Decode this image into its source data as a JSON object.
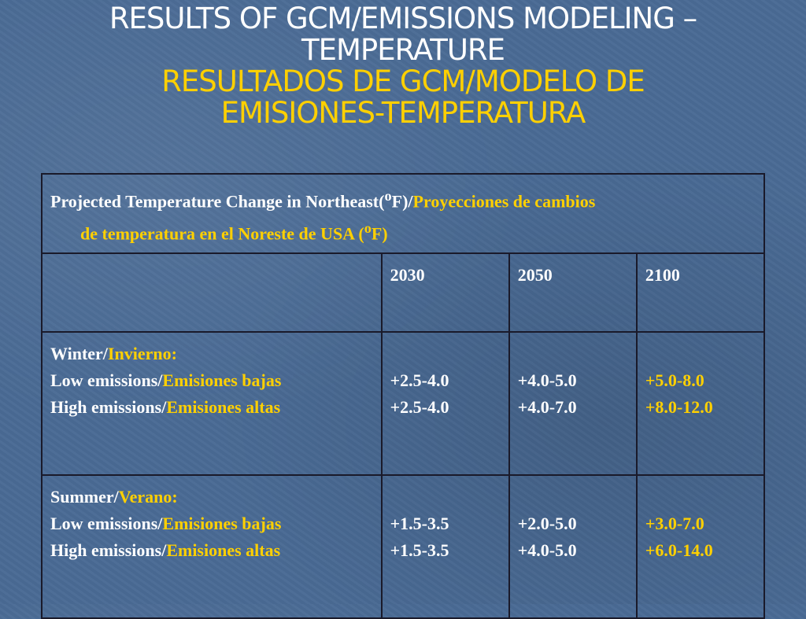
{
  "title": {
    "en_line1": "RESULTS OF GCM/EMISSIONS MODELING –",
    "en_line2": "TEMPERATURE",
    "es_line1": "RESULTADOS DE GCM/MODELO DE",
    "es_line2": "EMISIONES-TEMPERATURA"
  },
  "table": {
    "header": {
      "en": "Projected Temperature Change in Northeast(",
      "en_sup": "o",
      "en_end": "F)/",
      "es_a": "Proyecciones de cambios",
      "es_b": "de temperatura en el Noreste de USA (",
      "es_sup": "o",
      "es_end": "F)"
    },
    "years": [
      "2030",
      "2050",
      "2100"
    ],
    "rows": [
      {
        "season_en": "Winter/",
        "season_es": "Invierno:",
        "low_en": "Low emissions/",
        "low_es": "Emisiones bajas",
        "high_en": "High emissions/",
        "high_es": "Emisiones altas",
        "low_values": [
          "+2.5-4.0",
          "+4.0-5.0",
          "+5.0-8.0"
        ],
        "high_values": [
          "+2.5-4.0",
          "+4.0-7.0",
          "+8.0-12.0"
        ]
      },
      {
        "season_en": "Summer/",
        "season_es": "Verano:",
        "low_en": "Low emissions/",
        "low_es": "Emisiones bajas",
        "high_en": "High emissions/",
        "high_es": "Emisiones altas",
        "low_values": [
          "+1.5-3.5",
          "+2.0-5.0",
          "+3.0-7.0"
        ],
        "high_values": [
          "+1.5-3.5",
          "+4.0-5.0",
          "+6.0-14.0"
        ]
      }
    ]
  },
  "colors": {
    "background": "#4a6a95",
    "english_text": "#ffffff",
    "spanish_text": "#ffd000",
    "border": "#1a1a2a"
  }
}
